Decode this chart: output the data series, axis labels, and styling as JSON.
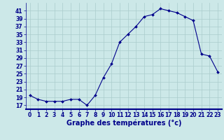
{
  "x": [
    0,
    1,
    2,
    3,
    4,
    5,
    6,
    7,
    8,
    9,
    10,
    11,
    12,
    13,
    14,
    15,
    16,
    17,
    18,
    19,
    20,
    21,
    22,
    23
  ],
  "y": [
    19.5,
    18.5,
    18.0,
    18.0,
    18.0,
    18.5,
    18.5,
    17.0,
    19.5,
    24.0,
    27.5,
    33.0,
    35.0,
    37.0,
    39.5,
    40.0,
    41.5,
    41.0,
    40.5,
    39.5,
    38.5,
    30.0,
    29.5,
    25.5
  ],
  "line_color": "#00008b",
  "marker": "D",
  "markersize": 2.0,
  "linewidth": 0.8,
  "xlabel": "Graphe des températures (°c)",
  "xlabel_fontsize": 7,
  "background_color": "#cce8e8",
  "grid_color": "#aacccc",
  "ylim": [
    16,
    43
  ],
  "yticks": [
    17,
    19,
    21,
    23,
    25,
    27,
    29,
    31,
    33,
    35,
    37,
    39,
    41
  ],
  "xticks": [
    0,
    1,
    2,
    3,
    4,
    5,
    6,
    7,
    8,
    9,
    10,
    11,
    12,
    13,
    14,
    15,
    16,
    17,
    18,
    19,
    20,
    21,
    22,
    23
  ],
  "tick_fontsize": 5.5,
  "axes_color": "#00008b",
  "xlabel_fontweight": "bold"
}
